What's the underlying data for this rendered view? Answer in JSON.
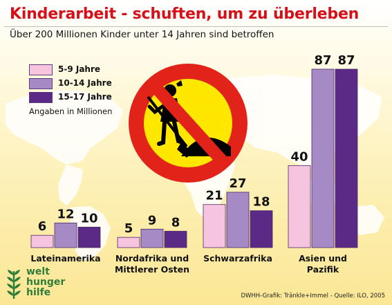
{
  "title": "Kinderarbeit - schuften, um zu überleben",
  "subtitle": "Über 200 Millionen Kinder unter 14 Jahren sind betroffen",
  "note": "Angaben in Millionen",
  "logo": {
    "line1": "welt",
    "line2": "hunger",
    "line3": "hilfe"
  },
  "source": "DWHH-Grafik: Tränkle+Immel - Quelle: ILO, 2005",
  "colors": {
    "title": "#d6101a",
    "light": "#f7c4df",
    "medium": "#a68ac5",
    "dark": "#5a2a86",
    "logo": "#2f7d39",
    "sign_red": "#e2231a",
    "sign_yellow": "#ffe700"
  },
  "icons": {
    "sign": "no-child-labor-sign-icon",
    "logo": "wheat-logo-icon",
    "map": "world-map-background"
  },
  "chart_data": {
    "type": "bar",
    "categories": [
      "Lateinamerika",
      "Nordafrika und Mittlerer Osten",
      "Schwarzafrika",
      "Asien und Pazifik"
    ],
    "category_lines": [
      [
        "Lateinamerika"
      ],
      [
        "Nordafrika und",
        "Mittlerer Osten"
      ],
      [
        "Schwarzafrika"
      ],
      [
        "Asien und",
        "Pazifik"
      ]
    ],
    "series": [
      {
        "name": "5-9 Jahre",
        "values": [
          6,
          5,
          21,
          40
        ]
      },
      {
        "name": "10-14 Jahre",
        "values": [
          12,
          9,
          27,
          87
        ]
      },
      {
        "name": "15-17 Jahre",
        "values": [
          10,
          8,
          18,
          87
        ]
      }
    ],
    "value_labels": [
      [
        "6",
        "5",
        "21",
        "40"
      ],
      [
        "12",
        "9",
        "27",
        "87"
      ],
      [
        "10",
        "8",
        "18",
        "87"
      ]
    ],
    "ylim": [
      0,
      87
    ],
    "legend": "top-left",
    "grid": false
  }
}
